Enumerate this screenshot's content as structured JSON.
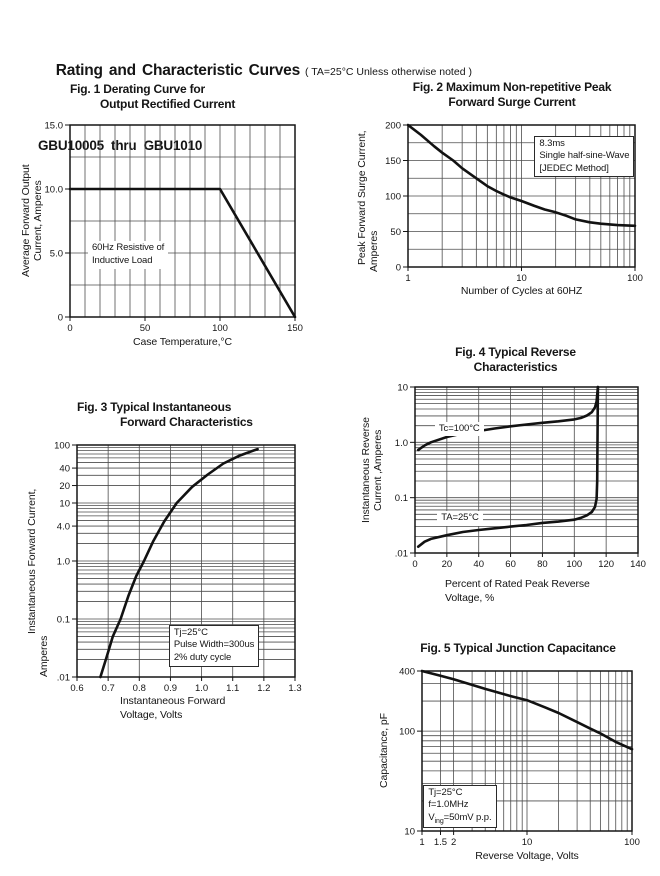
{
  "header": {
    "title": "Rating and Characteristic Curves",
    "condition": "( TA=25°C Unless otherwise noted )",
    "subtitle": "GBU10005  thru  GBU1010"
  },
  "chart_data": [
    {
      "id": "fig1",
      "type": "line",
      "title_lines": [
        "Fig. 1 Derating Curve for",
        "Output Rectified Current"
      ],
      "xlabel_lines": [
        "Case Temperature,°C"
      ],
      "ylabel_lines": [
        "Average Forward Output",
        "Current, Amperes"
      ],
      "x_axis": {
        "scale": "linear",
        "min": 0,
        "max": 150,
        "grid_step": 10,
        "ticks": [
          {
            "v": 0,
            "label": "0"
          },
          {
            "v": 50,
            "label": "50"
          },
          {
            "v": 100,
            "label": "100"
          },
          {
            "v": 150,
            "label": "150"
          }
        ]
      },
      "y_axis": {
        "scale": "linear",
        "min": 0,
        "max": 15,
        "grid_step": 2.5,
        "ticks": [
          {
            "v": 0,
            "label": "0"
          },
          {
            "v": 5,
            "label": "5.0"
          },
          {
            "v": 10,
            "label": "10.0"
          },
          {
            "v": 15,
            "label": "15.0"
          }
        ]
      },
      "series": [
        {
          "name": "derating",
          "points": [
            [
              0,
              10
            ],
            [
              100,
              10
            ],
            [
              150,
              0
            ]
          ]
        }
      ],
      "annotations": [
        {
          "lines": [
            "60Hz Resistive of",
            "Inductive Load"
          ],
          "x": 12,
          "y": 5.9,
          "border": false
        }
      ]
    },
    {
      "id": "fig2",
      "type": "line",
      "title_lines": [
        "Fig. 2 Maximum Non-repetitive Peak",
        "Forward Surge Current"
      ],
      "xlabel_lines": [
        "Number of Cycles at 60HZ"
      ],
      "ylabel_lines": [
        "Peak Forward Surge Current,",
        "Amperes"
      ],
      "x_axis": {
        "scale": "log",
        "min": 1,
        "max": 100,
        "ticks": [
          {
            "v": 1,
            "label": "1"
          },
          {
            "v": 10,
            "label": "10"
          },
          {
            "v": 100,
            "label": "100"
          }
        ]
      },
      "y_axis": {
        "scale": "linear",
        "min": 0,
        "max": 200,
        "grid_step": 25,
        "ticks": [
          {
            "v": 0,
            "label": "0"
          },
          {
            "v": 50,
            "label": "50"
          },
          {
            "v": 100,
            "label": "100"
          },
          {
            "v": 150,
            "label": "150"
          },
          {
            "v": 200,
            "label": "200"
          }
        ]
      },
      "series": [
        {
          "name": "surge",
          "points": [
            [
              1,
              200
            ],
            [
              1.3,
              186
            ],
            [
              1.7,
              170
            ],
            [
              2,
              161
            ],
            [
              2.5,
              150
            ],
            [
              3,
              139
            ],
            [
              4,
              125
            ],
            [
              5,
              114
            ],
            [
              6,
              107
            ],
            [
              7,
              102
            ],
            [
              8,
              98
            ],
            [
              10,
              93
            ],
            [
              13,
              86
            ],
            [
              16,
              81
            ],
            [
              20,
              77
            ],
            [
              25,
              72
            ],
            [
              30,
              67
            ],
            [
              40,
              63
            ],
            [
              50,
              61
            ],
            [
              70,
              59
            ],
            [
              100,
              58
            ]
          ]
        }
      ],
      "annotations": [
        {
          "lines": [
            "8.3ms",
            "Single half-sine-Wave",
            "[JEDEC Method]"
          ],
          "x": 13,
          "y": 185,
          "border": true
        }
      ]
    },
    {
      "id": "fig3",
      "type": "line",
      "title_lines": [
        "Fig. 3 Typical Instantaneous",
        "Forward Characteristics"
      ],
      "xlabel_lines": [
        "Instantaneous Forward",
        "Voltage, Volts"
      ],
      "ylabel_lines": [
        "Instantaneous Forward Current,",
        "Amperes"
      ],
      "x_axis": {
        "scale": "linear",
        "min": 0.6,
        "max": 1.3,
        "grid_step": 0.1,
        "ticks": [
          {
            "v": 0.6,
            "label": "0.6"
          },
          {
            "v": 0.7,
            "label": "0.7"
          },
          {
            "v": 0.8,
            "label": "0.8"
          },
          {
            "v": 0.9,
            "label": "0.9"
          },
          {
            "v": 1.0,
            "label": "1.0"
          },
          {
            "v": 1.1,
            "label": "1.1"
          },
          {
            "v": 1.2,
            "label": "1.2"
          },
          {
            "v": 1.3,
            "label": "1.3"
          }
        ]
      },
      "y_axis": {
        "scale": "log",
        "min": 0.01,
        "max": 100,
        "ticks": [
          {
            "v": 0.01,
            "label": ".01"
          },
          {
            "v": 0.1,
            "label": "0.1"
          },
          {
            "v": 1,
            "label": "1.0"
          },
          {
            "v": 4,
            "label": "4.0"
          },
          {
            "v": 10,
            "label": "10"
          },
          {
            "v": 20,
            "label": "20"
          },
          {
            "v": 40,
            "label": "40"
          },
          {
            "v": 100,
            "label": "100"
          }
        ]
      },
      "series": [
        {
          "name": "forward",
          "points": [
            [
              0.675,
              0.01
            ],
            [
              0.695,
              0.022
            ],
            [
              0.715,
              0.05
            ],
            [
              0.74,
              0.1
            ],
            [
              0.765,
              0.25
            ],
            [
              0.79,
              0.55
            ],
            [
              0.815,
              1.0
            ],
            [
              0.845,
              2.2
            ],
            [
              0.88,
              4.8
            ],
            [
              0.92,
              10
            ],
            [
              0.97,
              19
            ],
            [
              1.02,
              31
            ],
            [
              1.07,
              48
            ],
            [
              1.12,
              65
            ],
            [
              1.18,
              85
            ]
          ]
        }
      ],
      "annotations": [
        {
          "lines": [
            "Tj=25°C",
            "Pulse Width=300us",
            "2% duty cycle"
          ],
          "x": 0.895,
          "y": 0.079,
          "border": true
        }
      ]
    },
    {
      "id": "fig4",
      "type": "line",
      "title_lines": [
        "Fig. 4 Typical Reverse",
        "Characteristics"
      ],
      "xlabel_lines": [
        "Percent of Rated Peak Reverse",
        "Voltage, %"
      ],
      "ylabel_lines": [
        "Instantaneous Reverse",
        "Current ,Amperes"
      ],
      "x_axis": {
        "scale": "linear",
        "min": 0,
        "max": 140,
        "grid_step": 20,
        "ticks": [
          {
            "v": 0,
            "label": "0"
          },
          {
            "v": 20,
            "label": "20"
          },
          {
            "v": 40,
            "label": "40"
          },
          {
            "v": 60,
            "label": "60"
          },
          {
            "v": 80,
            "label": "80"
          },
          {
            "v": 100,
            "label": "100"
          },
          {
            "v": 120,
            "label": "120"
          },
          {
            "v": 140,
            "label": "140"
          }
        ]
      },
      "y_axis": {
        "scale": "log",
        "min": 0.01,
        "max": 10,
        "ticks": [
          {
            "v": 0.01,
            "label": ".01"
          },
          {
            "v": 0.1,
            "label": "0.1"
          },
          {
            "v": 1,
            "label": "1.0"
          },
          {
            "v": 10,
            "label": "10"
          }
        ]
      },
      "series": [
        {
          "name": "Tc=100°C",
          "points": [
            [
              2,
              0.73
            ],
            [
              6,
              0.88
            ],
            [
              10,
              1.0
            ],
            [
              20,
              1.25
            ],
            [
              30,
              1.45
            ],
            [
              40,
              1.6
            ],
            [
              50,
              1.78
            ],
            [
              60,
              1.95
            ],
            [
              70,
              2.1
            ],
            [
              80,
              2.25
            ],
            [
              90,
              2.4
            ],
            [
              100,
              2.6
            ],
            [
              104,
              2.75
            ],
            [
              108,
              3.05
            ],
            [
              111,
              3.5
            ],
            [
              113,
              4.3
            ],
            [
              114,
              5.5
            ],
            [
              114.8,
              10
            ]
          ]
        },
        {
          "name": "TA=25°C",
          "points": [
            [
              2,
              0.013
            ],
            [
              6,
              0.016
            ],
            [
              10,
              0.018
            ],
            [
              20,
              0.021
            ],
            [
              30,
              0.024
            ],
            [
              40,
              0.026
            ],
            [
              50,
              0.028
            ],
            [
              60,
              0.03
            ],
            [
              70,
              0.032
            ],
            [
              80,
              0.035
            ],
            [
              90,
              0.037
            ],
            [
              100,
              0.04
            ],
            [
              104,
              0.043
            ],
            [
              108,
              0.048
            ],
            [
              111,
              0.055
            ],
            [
              113,
              0.068
            ],
            [
              114,
              0.095
            ],
            [
              114.4,
              0.2
            ],
            [
              114.8,
              10
            ]
          ]
        }
      ],
      "annotations": [
        {
          "lines": [
            "Tc=100°C"
          ],
          "x": 12.5,
          "y": 2.35,
          "border": false
        },
        {
          "lines": [
            "TA=25°C"
          ],
          "x": 14,
          "y": 0.057,
          "border": false
        }
      ]
    },
    {
      "id": "fig5",
      "type": "line",
      "title_lines": [
        "Fig. 5 Typical Junction Capacitance"
      ],
      "xlabel_lines": [
        "Reverse Voltage, Volts"
      ],
      "ylabel_lines": [
        "Capacitance, pF"
      ],
      "x_axis": {
        "scale": "log",
        "min": 1,
        "max": 100,
        "extra_grid": [
          1.5
        ],
        "ticks": [
          {
            "v": 1,
            "label": "1"
          },
          {
            "v": 1.5,
            "label": "1.5"
          },
          {
            "v": 2,
            "label": "2"
          },
          {
            "v": 10,
            "label": "10"
          },
          {
            "v": 100,
            "label": "100"
          }
        ]
      },
      "y_axis": {
        "scale": "log",
        "min": 10,
        "max": 400,
        "ticks": [
          {
            "v": 10,
            "label": "10"
          },
          {
            "v": 100,
            "label": "100"
          },
          {
            "v": 400,
            "label": "400"
          }
        ]
      },
      "series": [
        {
          "name": "capacitance",
          "points": [
            [
              1,
              400
            ],
            [
              1.5,
              358
            ],
            [
              2,
              330
            ],
            [
              3,
              290
            ],
            [
              4,
              265
            ],
            [
              5,
              248
            ],
            [
              7,
              224
            ],
            [
              10,
              204
            ],
            [
              15,
              172
            ],
            [
              20,
              152
            ],
            [
              30,
              123
            ],
            [
              40,
              106
            ],
            [
              50,
              95
            ],
            [
              70,
              78
            ],
            [
              100,
              66
            ]
          ]
        }
      ],
      "annotations": [
        {
          "lines": [
            "Tj=25°C",
            "f=1.0MHz",
            "V_{ing}=50mV p.p."
          ],
          "x": 1.03,
          "y": 29,
          "border": true
        }
      ]
    }
  ]
}
